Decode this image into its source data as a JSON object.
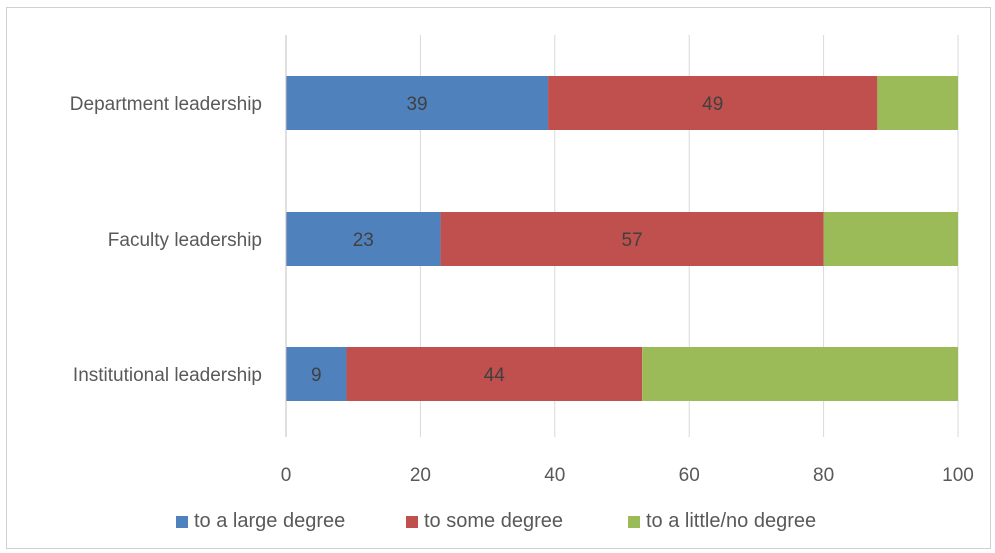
{
  "chart_data": {
    "type": "bar",
    "orientation": "horizontal",
    "stacked": true,
    "categories": [
      "Department leadership",
      "Faculty leadership",
      "Institutional leadership"
    ],
    "series": [
      {
        "name": "to a large degree",
        "values": [
          39,
          23,
          9
        ],
        "color": "#4f81bd",
        "labels": [
          "39",
          "23",
          "9"
        ]
      },
      {
        "name": "to some degree",
        "values": [
          49,
          57,
          44
        ],
        "color": "#c0504d",
        "labels": [
          "49",
          "57",
          "44"
        ]
      },
      {
        "name": "to a little/no degree",
        "values": [
          12,
          20,
          47
        ],
        "color": "#9bbb59",
        "labels": [
          "",
          "",
          ""
        ]
      }
    ],
    "xlim": [
      0,
      100
    ],
    "xticks": [
      "0",
      "20",
      "40",
      "60",
      "80",
      "100"
    ],
    "grid": true,
    "legend_position": "bottom",
    "title": "",
    "xlabel": "",
    "ylabel": ""
  }
}
